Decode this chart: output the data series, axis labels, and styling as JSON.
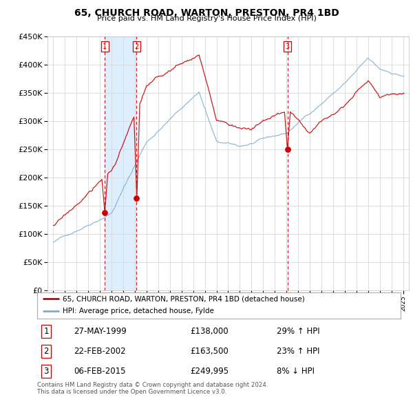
{
  "title": "65, CHURCH ROAD, WARTON, PRESTON, PR4 1BD",
  "subtitle": "Price paid vs. HM Land Registry's House Price Index (HPI)",
  "property_label": "65, CHURCH ROAD, WARTON, PRESTON, PR4 1BD (detached house)",
  "hpi_label": "HPI: Average price, detached house, Fylde",
  "footer": "Contains HM Land Registry data © Crown copyright and database right 2024.\nThis data is licensed under the Open Government Licence v3.0.",
  "transactions": [
    {
      "num": 1,
      "date": "27-MAY-1999",
      "price": "£138,000",
      "change": "29% ↑ HPI",
      "year": 1999.42
    },
    {
      "num": 2,
      "date": "22-FEB-2002",
      "price": "£163,500",
      "change": "23% ↑ HPI",
      "year": 2002.13
    },
    {
      "num": 3,
      "date": "06-FEB-2015",
      "price": "£249,995",
      "change": "8% ↓ HPI",
      "year": 2015.1
    }
  ],
  "property_color": "#cc0000",
  "hpi_color": "#7aaad0",
  "shade_color": "#ddeeff",
  "vline_color": "#cc0000",
  "background_color": "#ffffff",
  "grid_color": "#d8d8d8",
  "ylim": [
    0,
    450000
  ],
  "yticks": [
    0,
    50000,
    100000,
    150000,
    200000,
    250000,
    300000,
    350000,
    400000,
    450000
  ],
  "xlim": [
    1994.5,
    2025.5
  ],
  "xticks": [
    1995,
    1996,
    1997,
    1998,
    1999,
    2000,
    2001,
    2002,
    2003,
    2004,
    2005,
    2006,
    2007,
    2008,
    2009,
    2010,
    2011,
    2012,
    2013,
    2014,
    2015,
    2016,
    2017,
    2018,
    2019,
    2020,
    2021,
    2022,
    2023,
    2024,
    2025
  ]
}
